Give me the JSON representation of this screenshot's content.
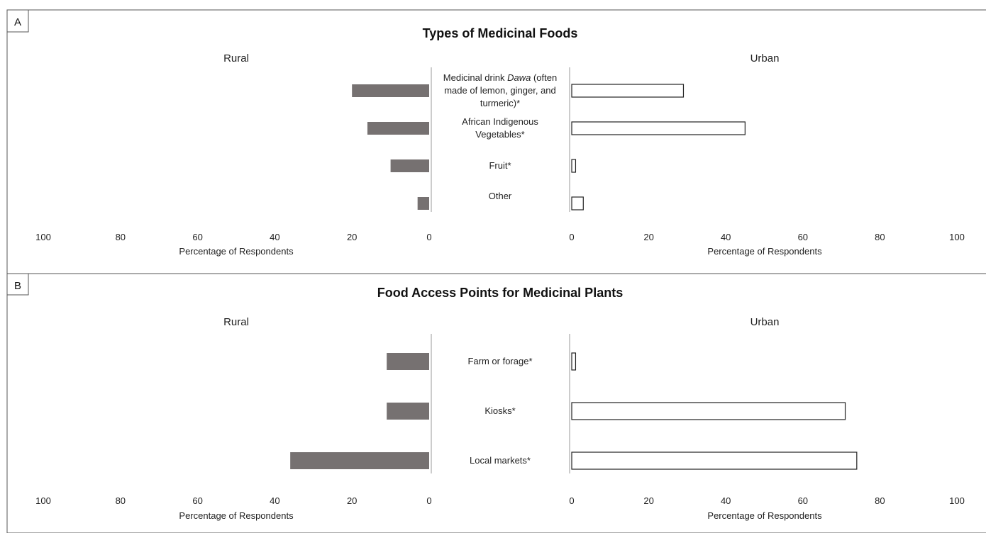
{
  "chart_data": [
    {
      "type": "bar",
      "panel_label": "A",
      "title": "Types of Medicinal Foods",
      "left_label": "Rural",
      "right_label": "Urban",
      "xlabel": "Percentage of Respondents",
      "xlim": [
        0,
        100
      ],
      "ticks": [
        "100",
        "80",
        "60",
        "40",
        "20",
        "0"
      ],
      "categories": [
        [
          "Medicinal drink ",
          {
            "i": "Dawa"
          },
          " (often",
          "made of lemon, ginger, and",
          "turmeric)*"
        ],
        [
          "African Indigenous",
          "Vegetables*"
        ],
        [
          "Fruit*"
        ],
        [
          "Other"
        ]
      ],
      "category_names": [
        "Medicinal drink Dawa (often made of lemon, ginger, and turmeric)*",
        "African Indigenous Vegetables*",
        "Fruit*",
        "Other"
      ],
      "series": [
        {
          "values": [
            20,
            16,
            10,
            3
          ],
          "color": "#767171"
        },
        {
          "values": [
            29,
            45,
            1,
            3
          ],
          "color": "#ffffff"
        }
      ]
    },
    {
      "type": "bar",
      "panel_label": "B",
      "title": "Food Access Points for Medicinal Plants",
      "left_label": "Rural",
      "right_label": "Urban",
      "xlabel": "Percentage of Respondents",
      "xlim": [
        0,
        100
      ],
      "ticks": [
        "100",
        "80",
        "60",
        "40",
        "20",
        "0"
      ],
      "categories": [
        [
          "Farm or forage*"
        ],
        [
          "Kiosks*"
        ],
        [
          "Local markets*"
        ]
      ],
      "category_names": [
        "Farm or forage*",
        "Kiosks*",
        "Local markets*"
      ],
      "series": [
        {
          "values": [
            11,
            11,
            36
          ],
          "color": "#767171"
        },
        {
          "values": [
            1,
            71,
            74
          ],
          "color": "#ffffff"
        }
      ]
    }
  ]
}
